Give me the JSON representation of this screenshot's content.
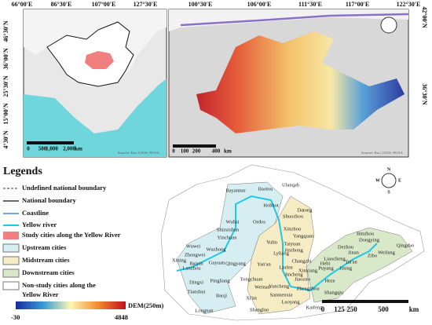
{
  "inset_map": {
    "top_labels": [
      "66°00′E",
      "86°30′E",
      "107°00′E",
      "127°30′E"
    ],
    "left_labels": [
      "46°30′N",
      "36°00′N",
      "25°30′N",
      "15°00′N",
      "4°30′N"
    ],
    "scale": [
      "0",
      "500",
      "1,000",
      "2,000",
      "km"
    ],
    "source": "Sources: Esri, USGS, NOAA"
  },
  "dem_map": {
    "top_labels": [
      "100°30′E",
      "106°00′E",
      "111°30′E",
      "117°00′E",
      "122°30′E"
    ],
    "right_labels": [
      "42°00′N",
      "36°30′N"
    ],
    "scale": [
      "0",
      "100",
      "200",
      "400",
      "km"
    ],
    "source": "Sources: Esri, USGS, NOAA"
  },
  "legend": {
    "title": "Legends",
    "items": [
      "Undefined national boundary",
      "National boundary",
      "Coastline",
      "Yellow river",
      "Study cities along the Yellow River",
      "Upstream cities",
      "Midstream cities",
      "Downstream cities",
      "Non-study cities along the Yellow River"
    ],
    "dem_label": "DEM(250m)",
    "dem_min": "-30",
    "dem_max": "4848"
  },
  "city_map": {
    "compass": [
      "N",
      "S",
      "W",
      "E"
    ],
    "scale": [
      "0",
      "125",
      "250",
      "500",
      "km"
    ],
    "cities": [
      "Bayannur",
      "Baotou",
      "Ulanqab",
      "Hohhot",
      "Wuhai",
      "Shizuishan",
      "Ordos",
      "Datong",
      "Shuozhou",
      "Xinzhou",
      "Yinchuan",
      "Yulin",
      "Yangquan",
      "Taiyuan",
      "Jinzhong",
      "Wuwei",
      "Zhongwei",
      "Wuzhong",
      "Lyliang",
      "Changzhi",
      "Xining",
      "Baiyin",
      "Guyuan",
      "Qingyang",
      "Yan'an",
      "Linfen",
      "Jincheng",
      "Lanzhou",
      "Dingxi",
      "Pingliang",
      "Tongchuan",
      "Weinan",
      "Yuncheng",
      "Jiaozuo",
      "Zhengzhou",
      "Tianshui",
      "Baoji",
      "Xi'an",
      "Sanmenxia",
      "Luoyang",
      "Longnan",
      "Shangluo",
      "Kaifeng",
      "Xinxiang",
      "Puyang",
      "Liaocheng",
      "Hebi",
      "Heze",
      "Jining",
      "Tai'an",
      "Jinan",
      "Dezhou",
      "Binzhou",
      "Dongying",
      "Zibo",
      "Weifang",
      "Qingdao",
      "Shangqiu"
    ]
  }
}
